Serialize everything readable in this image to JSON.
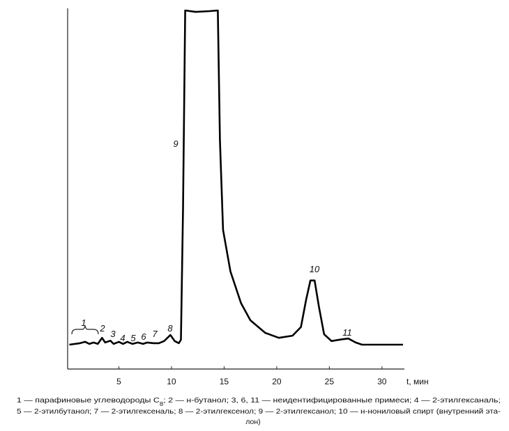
{
  "chart_data": {
    "type": "line",
    "x_label": "t, мин",
    "x": [
      0.3,
      1.3,
      1.8,
      2.2,
      2.6,
      3.0,
      3.4,
      3.7,
      4.2,
      4.5,
      5.0,
      5.4,
      5.8,
      6.3,
      6.8,
      7.3,
      7.7,
      8.3,
      8.8,
      9.3,
      9.9,
      10.3,
      10.7,
      10.9,
      11.1,
      11.3,
      12.3,
      13.6,
      14.4,
      14.6,
      14.9,
      15.6,
      16.6,
      17.5,
      18.9,
      20.2,
      21.5,
      22.3,
      22.8,
      23.2,
      23.6,
      24.0,
      24.5,
      25.2,
      26.2,
      26.8,
      27.5,
      28.1,
      32.0
    ],
    "values": [
      6.8,
      7.2,
      7.6,
      7.0,
      7.4,
      7.0,
      8.7,
      7.4,
      7.9,
      7.0,
      7.6,
      7.0,
      7.6,
      7.0,
      7.4,
      7.0,
      7.4,
      7.2,
      7.2,
      7.8,
      9.5,
      7.8,
      7.2,
      8.2,
      44.7,
      100,
      99.6,
      99.8,
      100,
      64,
      38.8,
      27.2,
      18.4,
      13.6,
      10.1,
      8.7,
      9.3,
      11.7,
      19.4,
      24.7,
      24.7,
      17.5,
      9.7,
      7.8,
      8.3,
      8.5,
      7.4,
      6.8,
      6.8
    ],
    "color": "#000000",
    "xlim": [
      0,
      32
    ],
    "ylim": [
      0,
      100
    ],
    "xticks": [
      5,
      10,
      15,
      20,
      25,
      30
    ],
    "grid": false,
    "peak_labels": [
      "1",
      "2",
      "3",
      "4",
      "5",
      "6",
      "7",
      "8",
      "9",
      "10",
      "11"
    ],
    "caption": [
      [
        "1 — парафиновые углеводороды С",
        "8",
        "; 2 — н-бутанол; 3, 6, 11 — неидентифицированные примеси; 4 — 2-этилгексаналь;"
      ],
      [
        "5 — 2-этилбутанол; 7 — 2-этилгексеналь; 8 — 2-этилгексенол; 9 — 2-этилгексанол; 10 — н-нониловый спирт (внутренний эта-"
      ],
      [
        "лон)"
      ]
    ]
  }
}
